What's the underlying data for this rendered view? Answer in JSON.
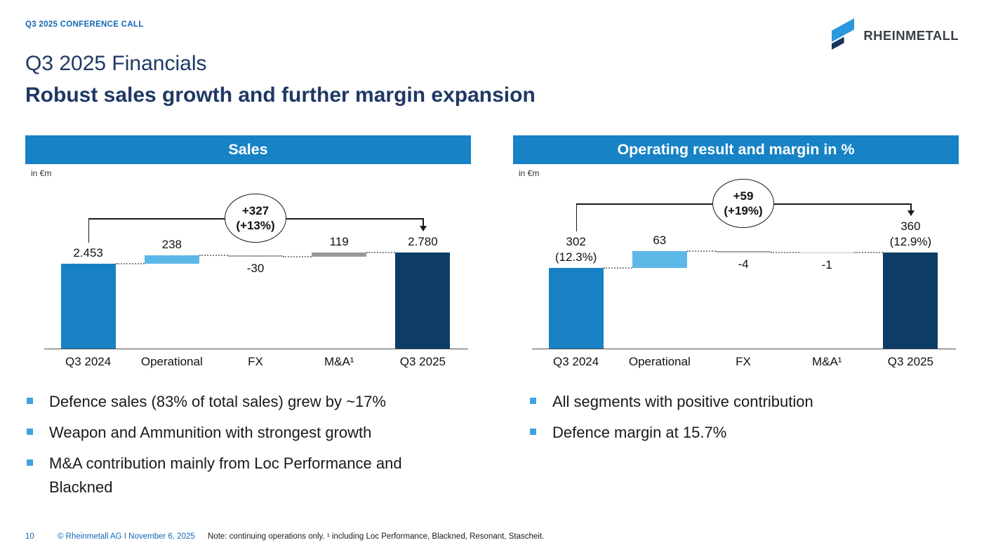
{
  "header": {
    "kicker": "Q3 2025 CONFERENCE CALL",
    "logo_brand": "RHEINMETALL",
    "title": "Q3 2025 Financials",
    "subtitle": "Robust sales growth and further margin expansion"
  },
  "charts": [
    {
      "header": "Sales",
      "unit_label": "in €m",
      "bridge": {
        "line1": "+327",
        "line2": "(+13%)"
      },
      "chart_data": {
        "type": "waterfall",
        "categories": [
          "Q3 2024",
          "Operational",
          "FX",
          "M&A¹",
          "Q3 2025"
        ],
        "values": [
          2453,
          238,
          -30,
          119,
          2780
        ],
        "roles": [
          "total",
          "delta",
          "delta",
          "delta",
          "total"
        ],
        "bar_labels": [
          [
            "2.453"
          ],
          [
            "238"
          ],
          [
            "-30"
          ],
          [
            "119"
          ],
          [
            "2.780"
          ]
        ],
        "bar_colors": [
          "#1781C4",
          "#5CB8E7",
          "#A5A7AA",
          "#96989C",
          "#0D3D66"
        ],
        "delta_total": "+327",
        "delta_pct": "+13%",
        "ylim": [
          0,
          2780
        ],
        "grid": false,
        "legend": false
      }
    },
    {
      "header": "Operating result and margin in %",
      "unit_label": "in €m",
      "bridge": {
        "line1": "+59",
        "line2": "(+19%)"
      },
      "chart_data": {
        "type": "waterfall",
        "categories": [
          "Q3 2024",
          "Operational",
          "FX",
          "M&A¹",
          "Q3 2025"
        ],
        "values": [
          302,
          63,
          -4,
          -1,
          360
        ],
        "roles": [
          "total",
          "delta",
          "delta",
          "delta",
          "total"
        ],
        "bar_labels": [
          [
            "302",
            "(12.3%)"
          ],
          [
            "63"
          ],
          [
            "-4"
          ],
          [
            "-1"
          ],
          [
            "360",
            "(12.9%)"
          ]
        ],
        "bar_colors": [
          "#1781C4",
          "#5CB8E7",
          "#A5A7AA",
          "#C6C9CB",
          "#0D3D66"
        ],
        "delta_total": "+59",
        "delta_pct": "+19%",
        "margins": {
          "Q3 2024": "12.3%",
          "Q3 2025": "12.9%"
        },
        "ylim": [
          0,
          360
        ],
        "grid": false,
        "legend": false
      }
    }
  ],
  "bullets_left": [
    "Defence sales (83% of total sales) grew by ~17%",
    "Weapon and Ammunition with strongest growth",
    "M&A contribution mainly from Loc Performance and Blackned"
  ],
  "bullets_right": [
    "All segments with positive contribution",
    "Defence margin at 15.7%"
  ],
  "footer": {
    "page_number": "10",
    "copyright": "© Rheinmetall AG I November 6, 2025",
    "note": "Note: continuing operations only. ¹ including Loc Performance, Blackned, Resonant, Stascheit."
  },
  "colors": {
    "panel_header": "#1783C6",
    "total_start": "#1781C4",
    "operational": "#5CB8E7",
    "fx_gray": "#A5A7AA",
    "mna_gray": "#96989C",
    "total_end": "#0D3D66",
    "title_navy": "#1F3864",
    "kicker_blue": "#1268B3",
    "bullet_square": "#41A3DC",
    "logo_light_blue": "#2B97DC",
    "logo_navy": "#16355B",
    "logo_text": "#3A4047"
  }
}
